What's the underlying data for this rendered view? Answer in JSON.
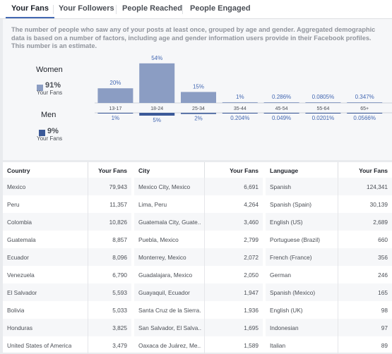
{
  "tabs": [
    "Your Fans",
    "Your Followers",
    "People Reached",
    "People Engaged"
  ],
  "description": "The number of people who saw any of your posts at least once, grouped by age and gender. Aggregated demographic data is based on a number of factors, including age and gender information users provide in their Facebook profiles. This number is an estimate.",
  "gender": {
    "women": {
      "label": "Women",
      "pct": "91%",
      "sub": "Your Fans",
      "color": "#8b9dc3"
    },
    "men": {
      "label": "Men",
      "pct": "9%",
      "sub": "Your Fans",
      "color": "#3b5998"
    }
  },
  "chart_data": {
    "type": "bar",
    "categories": [
      "13-17",
      "18-24",
      "25-34",
      "35-44",
      "45-54",
      "55-64",
      "65+"
    ],
    "series": [
      {
        "name": "Women",
        "values": [
          20,
          54,
          15,
          1,
          0.286,
          0.0805,
          0.347
        ],
        "labels": [
          "20%",
          "54%",
          "15%",
          "1%",
          "0.286%",
          "0.0805%",
          "0.347%"
        ]
      },
      {
        "name": "Men",
        "values": [
          1,
          5,
          2,
          0.204,
          0.049,
          0.0201,
          0.0566
        ],
        "labels": [
          "1%",
          "5%",
          "2%",
          "0.204%",
          "0.049%",
          "0.0201%",
          "0.0566%"
        ]
      }
    ],
    "colors": {
      "women": "#8b9dc3",
      "men": "#3b5998"
    }
  },
  "tables": [
    {
      "headers": [
        "Country",
        "Your Fans"
      ],
      "rows": [
        [
          "Mexico",
          "79,943"
        ],
        [
          "Peru",
          "11,357"
        ],
        [
          "Colombia",
          "10,826"
        ],
        [
          "Guatemala",
          "8,857"
        ],
        [
          "Ecuador",
          "8,096"
        ],
        [
          "Venezuela",
          "6,790"
        ],
        [
          "El Salvador",
          "5,593"
        ],
        [
          "Bolivia",
          "5,033"
        ],
        [
          "Honduras",
          "3,825"
        ],
        [
          "United States of America",
          "3,479"
        ]
      ]
    },
    {
      "headers": [
        "City",
        "Your Fans"
      ],
      "rows": [
        [
          "Mexico City, Mexico",
          "6,691"
        ],
        [
          "Lima, Peru",
          "4,264"
        ],
        [
          "Guatemala City, Guate...",
          "3,460"
        ],
        [
          "Puebla, Mexico",
          "2,799"
        ],
        [
          "Monterrey, Mexico",
          "2,072"
        ],
        [
          "Guadalajara, Mexico",
          "2,050"
        ],
        [
          "Guayaquil, Ecuador",
          "1,947"
        ],
        [
          "Santa Cruz de la Sierra...",
          "1,936"
        ],
        [
          "San Salvador, El Salva...",
          "1,695"
        ],
        [
          "Oaxaca de Juárez, Me...",
          "1,589"
        ]
      ]
    },
    {
      "headers": [
        "Language",
        "Your Fans"
      ],
      "rows": [
        [
          "Spanish",
          "124,341"
        ],
        [
          "Spanish (Spain)",
          "30,139"
        ],
        [
          "English (US)",
          "2,689"
        ],
        [
          "Portuguese (Brazil)",
          "660"
        ],
        [
          "French (France)",
          "356"
        ],
        [
          "German",
          "246"
        ],
        [
          "Spanish (Mexico)",
          "165"
        ],
        [
          "English (UK)",
          "98"
        ],
        [
          "Indonesian",
          "97"
        ],
        [
          "Italian",
          "89"
        ]
      ]
    }
  ]
}
